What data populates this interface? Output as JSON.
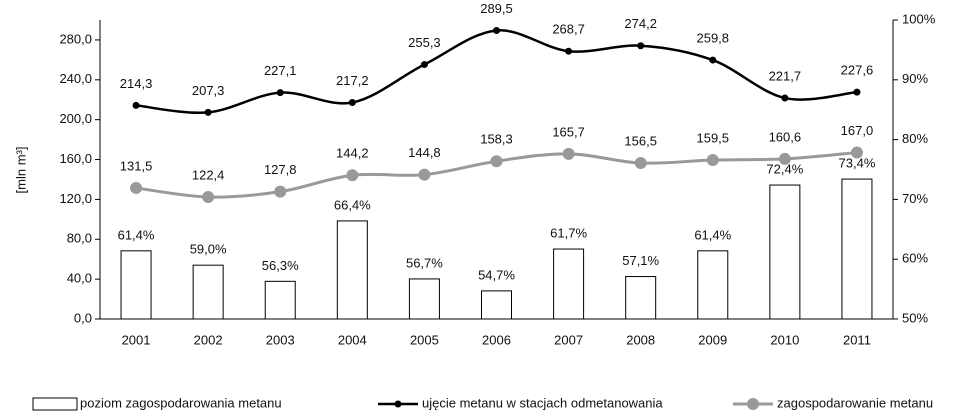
{
  "chart_data": {
    "type": "combo",
    "y_label": "[mln m³]",
    "categories": [
      "2001",
      "2002",
      "2003",
      "2004",
      "2005",
      "2006",
      "2007",
      "2008",
      "2009",
      "2010",
      "2011"
    ],
    "ylim": [
      0,
      300
    ],
    "yticks": [
      {
        "value": 0,
        "label": "0,0"
      },
      {
        "value": 40,
        "label": "40,0"
      },
      {
        "value": 80,
        "label": "80,0"
      },
      {
        "value": 120,
        "label": "120,0"
      },
      {
        "value": 160,
        "label": "160,0"
      },
      {
        "value": 200,
        "label": "200,0"
      },
      {
        "value": 240,
        "label": "240,0"
      },
      {
        "value": 280,
        "label": "280,0"
      }
    ],
    "y2lim": [
      50,
      100
    ],
    "y2ticks": [
      {
        "value": 50,
        "label": "50%"
      },
      {
        "value": 60,
        "label": "60%"
      },
      {
        "value": 70,
        "label": "70%"
      },
      {
        "value": 80,
        "label": "80%"
      },
      {
        "value": 90,
        "label": "90%"
      },
      {
        "value": 100,
        "label": "100%"
      }
    ],
    "series": [
      {
        "name": "poziom zagospodarowania metanu",
        "type": "bar",
        "axis": "y2",
        "color": "#ffffff",
        "values": [
          61.4,
          59.0,
          56.3,
          66.4,
          56.7,
          54.7,
          61.7,
          57.1,
          61.4,
          72.4,
          73.4
        ],
        "value_labels": [
          "61,4%",
          "59,0%",
          "56,3%",
          "66,4%",
          "56,7%",
          "54,7%",
          "61,7%",
          "57,1%",
          "61,4%",
          "72,4%",
          "73,4%"
        ]
      },
      {
        "name": "ujęcie metanu w stacjach odmetanowania",
        "type": "line",
        "color": "#000000",
        "values": [
          214.3,
          207.3,
          227.1,
          217.2,
          255.3,
          289.5,
          268.7,
          274.2,
          259.8,
          221.7,
          227.6
        ],
        "value_labels": [
          "214,3",
          "207,3",
          "227,1",
          "217,2",
          "255,3",
          "289,5",
          "268,7",
          "274,2",
          "259,8",
          "221,7",
          "227,6"
        ]
      },
      {
        "name": "zagospodarowanie metanu",
        "type": "line",
        "color": "#999999",
        "values": [
          131.5,
          122.4,
          127.8,
          144.2,
          144.8,
          158.3,
          165.7,
          156.5,
          159.5,
          160.6,
          167.0
        ],
        "value_labels": [
          "131,5",
          "122,4",
          "127,8",
          "144,2",
          "144,8",
          "158,3",
          "165,7",
          "156,5",
          "159,5",
          "160,6",
          "167,0"
        ]
      }
    ]
  }
}
